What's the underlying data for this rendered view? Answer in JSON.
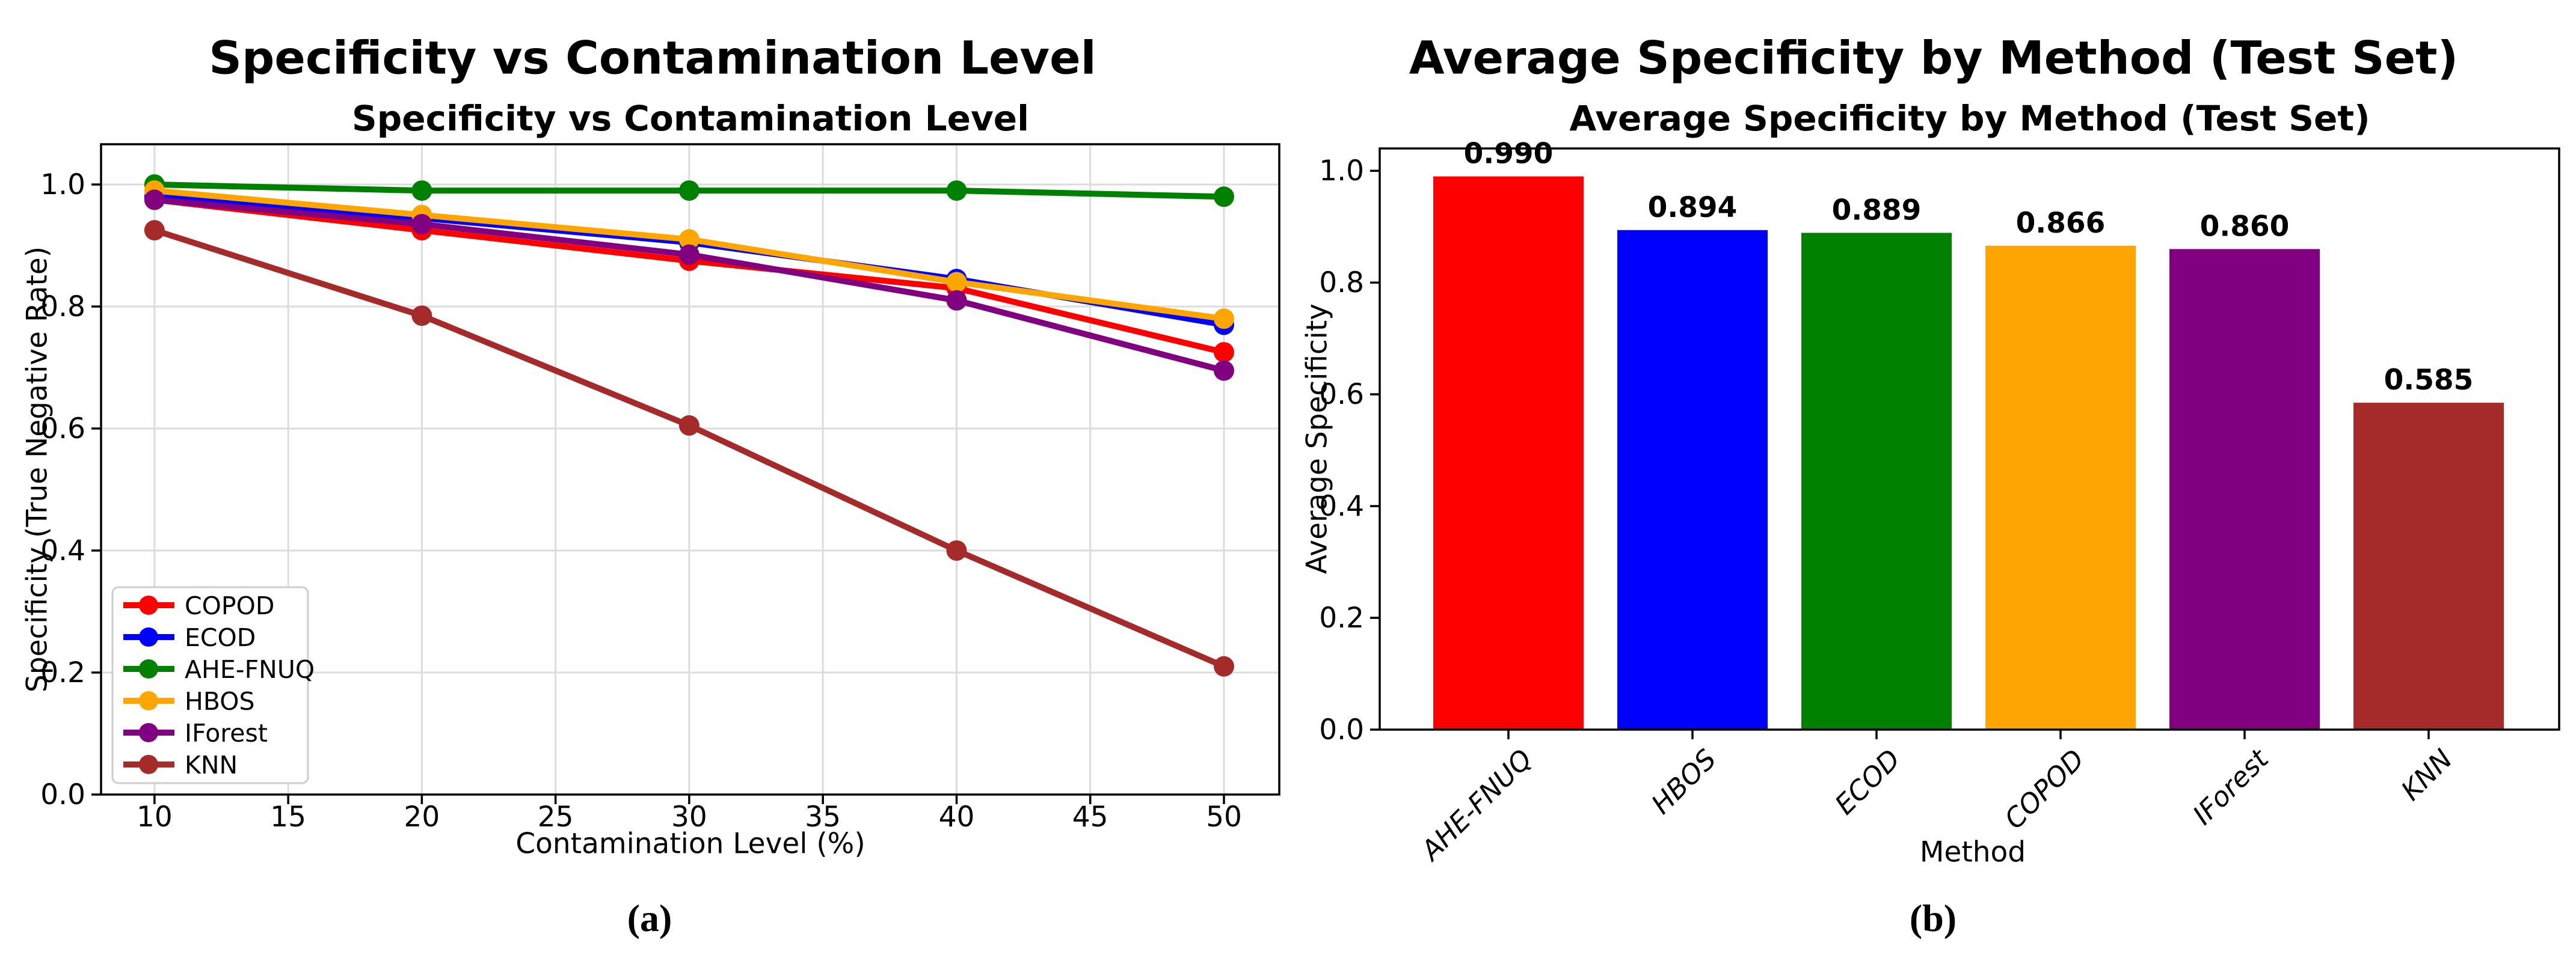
{
  "page": {
    "background": "#ffffff",
    "figure_type": "two-panel matplotlib figure"
  },
  "panels": {
    "a": {
      "suptitle": "Specificity vs Contamination Level",
      "caption": "(a)"
    },
    "b": {
      "suptitle": "Average Specificity by Method (Test Set)",
      "caption": "(b)"
    }
  },
  "colors": {
    "red": "#ff0000",
    "blue": "#0000ff",
    "green": "#008000",
    "orange": "#ffa500",
    "purple": "#800080",
    "brown": "#a52a2a",
    "grid": "#dcdcdc",
    "spine": "#000000",
    "legend_border": "#cccccc",
    "text": "#000000"
  },
  "chart_data": [
    {
      "type": "line",
      "title": "Specificity vs Contamination Level",
      "xlabel": "Contamination Level (%)",
      "ylabel": "Specificity (True Negative Rate)",
      "x": [
        10,
        20,
        30,
        40,
        50
      ],
      "xlim": [
        8,
        52.07
      ],
      "ylim": [
        0,
        1.066
      ],
      "xticks": [
        10,
        15,
        20,
        25,
        30,
        35,
        40,
        45,
        50
      ],
      "xtick_labels": [
        "10",
        "15",
        "20",
        "25",
        "30",
        "35",
        "40",
        "45",
        "50"
      ],
      "yticks": [
        0.0,
        0.2,
        0.4,
        0.6,
        0.8,
        1.0
      ],
      "ytick_labels": [
        "0.0",
        "0.2",
        "0.4",
        "0.6",
        "0.8",
        "1.0"
      ],
      "grid": true,
      "legend_position": "lower-left",
      "series": [
        {
          "name": "COPOD",
          "color": "#ff0000",
          "values": [
            0.975,
            0.925,
            0.875,
            0.83,
            0.725
          ]
        },
        {
          "name": "ECOD",
          "color": "#0000ff",
          "values": [
            0.98,
            0.945,
            0.905,
            0.845,
            0.77
          ]
        },
        {
          "name": "AHE-FNUQ",
          "color": "#008000",
          "values": [
            1.0,
            0.99,
            0.99,
            0.99,
            0.98
          ]
        },
        {
          "name": "HBOS",
          "color": "#ffa500",
          "values": [
            0.99,
            0.95,
            0.91,
            0.84,
            0.78
          ]
        },
        {
          "name": "IForest",
          "color": "#800080",
          "values": [
            0.975,
            0.935,
            0.885,
            0.81,
            0.695
          ]
        },
        {
          "name": "KNN",
          "color": "#a52a2a",
          "values": [
            0.925,
            0.785,
            0.605,
            0.4,
            0.21
          ]
        }
      ]
    },
    {
      "type": "bar",
      "title": "Average Specificity by Method (Test Set)",
      "xlabel": "Method",
      "ylabel": "Average Specificity",
      "categories": [
        "AHE-FNUQ",
        "HBOS",
        "ECOD",
        "COPOD",
        "IForest",
        "KNN"
      ],
      "values": [
        0.99,
        0.894,
        0.889,
        0.866,
        0.86,
        0.585
      ],
      "value_labels": [
        "0.990",
        "0.894",
        "0.889",
        "0.866",
        "0.860",
        "0.585"
      ],
      "bar_colors": [
        "#ff0000",
        "#0000ff",
        "#008000",
        "#ffa500",
        "#800080",
        "#a52a2a"
      ],
      "ylim": [
        0,
        1.04
      ],
      "yticks": [
        0.0,
        0.2,
        0.4,
        0.6,
        0.8,
        1.0
      ],
      "ytick_labels": [
        "0.0",
        "0.2",
        "0.4",
        "0.6",
        "0.8",
        "1.0"
      ],
      "grid": false,
      "legend_position": "none"
    }
  ]
}
